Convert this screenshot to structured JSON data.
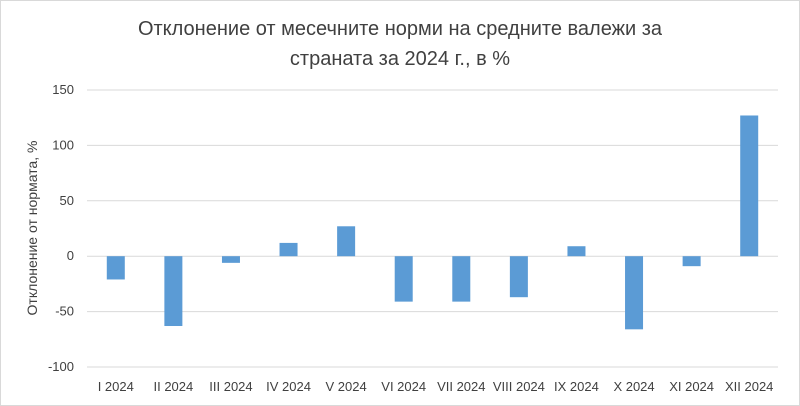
{
  "chart_data": {
    "type": "bar",
    "title_lines": [
      "Отклонение от месечните норми на средните валежи за",
      "страната за 2024 г., в %"
    ],
    "xlabel": "",
    "ylabel": "Отклонение от нормата, %",
    "categories": [
      "I 2024",
      "II 2024",
      "III 2024",
      "IV 2024",
      "V 2024",
      "VI 2024",
      "VII 2024",
      "VIII 2024",
      "IX 2024",
      "X 2024",
      "XI 2024",
      "XII 2024"
    ],
    "values": [
      -21,
      -63,
      -6,
      12,
      27,
      -41,
      -41,
      -37,
      9,
      -66,
      -9,
      127
    ],
    "ylim": [
      -100,
      150
    ],
    "yticks": [
      -100,
      -50,
      0,
      50,
      100,
      150
    ],
    "grid": true,
    "legend": "none",
    "colors": {
      "bar": "#5b9bd5",
      "grid": "#d9d9d9",
      "text": "#404040"
    }
  }
}
